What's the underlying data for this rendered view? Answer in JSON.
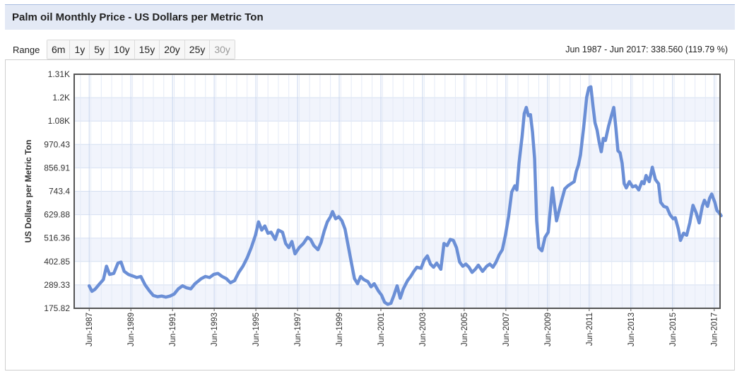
{
  "header": {
    "title": "Palm oil Monthly Price - US Dollars per Metric Ton"
  },
  "range": {
    "label": "Range",
    "buttons": [
      {
        "label": "6m",
        "enabled": true
      },
      {
        "label": "1y",
        "enabled": true
      },
      {
        "label": "5y",
        "enabled": true
      },
      {
        "label": "10y",
        "enabled": true
      },
      {
        "label": "15y",
        "enabled": true
      },
      {
        "label": "20y",
        "enabled": true
      },
      {
        "label": "25y",
        "enabled": true
      },
      {
        "label": "30y",
        "enabled": false
      }
    ],
    "summary": "Jun 1987 - Jun 2017: 338.560 (119.79 %)"
  },
  "colors": {
    "line": "#6b8fd6",
    "plot_bg_band": "#f1f4fc",
    "grid": "#d6e0f2",
    "plot_border": "#555555"
  },
  "chart_data": {
    "type": "line",
    "title": "",
    "xlabel": "",
    "ylabel": "US Dollars per Metric Ton",
    "ylim": [
      175.82,
      1310
    ],
    "xlim": [
      1986.7,
      2017.7
    ],
    "y_ticks": [
      "175.82",
      "289.33",
      "402.85",
      "516.36",
      "629.88",
      "743.4",
      "856.91",
      "970.43",
      "1.08K",
      "1.2K",
      "1.31K"
    ],
    "y_tick_values": [
      175.82,
      289.33,
      402.85,
      516.36,
      629.88,
      743.4,
      856.91,
      970.43,
      1083.95,
      1197.46,
      1310.98
    ],
    "x_ticks": [
      "Jun-1987",
      "Jun-1989",
      "Jun-1991",
      "Jun-1993",
      "Jun-1995",
      "Jun-1997",
      "Jun-1999",
      "Jun-2001",
      "Jun-2003",
      "Jun-2005",
      "Jun-2007",
      "Jun-2009",
      "Jun-2011",
      "Jun-2013",
      "Jun-2015",
      "Jun-2017"
    ],
    "x_tick_values": [
      1987.42,
      1989.42,
      1991.42,
      1993.42,
      1995.42,
      1997.42,
      1999.42,
      2001.42,
      2003.42,
      2005.42,
      2007.42,
      2009.42,
      2011.42,
      2013.42,
      2015.42,
      2017.42
    ],
    "legend": "none",
    "grid": true,
    "series": [
      {
        "points": [
          [
            1987.42,
            285
          ],
          [
            1987.55,
            258
          ],
          [
            1987.7,
            268
          ],
          [
            1987.9,
            292
          ],
          [
            1988.1,
            315
          ],
          [
            1988.25,
            380
          ],
          [
            1988.4,
            340
          ],
          [
            1988.6,
            345
          ],
          [
            1988.8,
            395
          ],
          [
            1988.95,
            400
          ],
          [
            1989.1,
            355
          ],
          [
            1989.3,
            340
          ],
          [
            1989.5,
            333
          ],
          [
            1989.7,
            325
          ],
          [
            1989.9,
            330
          ],
          [
            1990.1,
            290
          ],
          [
            1990.3,
            262
          ],
          [
            1990.5,
            238
          ],
          [
            1990.7,
            232
          ],
          [
            1990.9,
            235
          ],
          [
            1991.1,
            230
          ],
          [
            1991.3,
            235
          ],
          [
            1991.5,
            245
          ],
          [
            1991.7,
            270
          ],
          [
            1991.9,
            285
          ],
          [
            1992.1,
            275
          ],
          [
            1992.3,
            270
          ],
          [
            1992.5,
            295
          ],
          [
            1992.8,
            320
          ],
          [
            1993.0,
            330
          ],
          [
            1993.2,
            325
          ],
          [
            1993.4,
            340
          ],
          [
            1993.6,
            345
          ],
          [
            1993.8,
            330
          ],
          [
            1994.0,
            320
          ],
          [
            1994.2,
            300
          ],
          [
            1994.4,
            310
          ],
          [
            1994.6,
            350
          ],
          [
            1994.8,
            380
          ],
          [
            1995.0,
            420
          ],
          [
            1995.2,
            470
          ],
          [
            1995.4,
            530
          ],
          [
            1995.55,
            595
          ],
          [
            1995.7,
            555
          ],
          [
            1995.85,
            575
          ],
          [
            1996.0,
            540
          ],
          [
            1996.15,
            545
          ],
          [
            1996.35,
            510
          ],
          [
            1996.5,
            555
          ],
          [
            1996.7,
            545
          ],
          [
            1996.85,
            490
          ],
          [
            1997.0,
            470
          ],
          [
            1997.15,
            500
          ],
          [
            1997.3,
            440
          ],
          [
            1997.5,
            470
          ],
          [
            1997.7,
            490
          ],
          [
            1997.9,
            520
          ],
          [
            1998.05,
            510
          ],
          [
            1998.2,
            480
          ],
          [
            1998.4,
            460
          ],
          [
            1998.55,
            495
          ],
          [
            1998.7,
            550
          ],
          [
            1998.85,
            595
          ],
          [
            1999.0,
            620
          ],
          [
            1999.1,
            645
          ],
          [
            1999.25,
            610
          ],
          [
            1999.4,
            620
          ],
          [
            1999.55,
            600
          ],
          [
            1999.7,
            560
          ],
          [
            1999.85,
            480
          ],
          [
            2000.0,
            400
          ],
          [
            2000.15,
            320
          ],
          [
            2000.3,
            295
          ],
          [
            2000.45,
            330
          ],
          [
            2000.6,
            315
          ],
          [
            2000.8,
            305
          ],
          [
            2000.95,
            280
          ],
          [
            2001.1,
            295
          ],
          [
            2001.3,
            260
          ],
          [
            2001.45,
            240
          ],
          [
            2001.6,
            205
          ],
          [
            2001.75,
            195
          ],
          [
            2001.9,
            200
          ],
          [
            2002.05,
            240
          ],
          [
            2002.2,
            285
          ],
          [
            2002.35,
            225
          ],
          [
            2002.5,
            270
          ],
          [
            2002.7,
            310
          ],
          [
            2002.85,
            330
          ],
          [
            2003.0,
            355
          ],
          [
            2003.15,
            375
          ],
          [
            2003.35,
            370
          ],
          [
            2003.5,
            410
          ],
          [
            2003.65,
            430
          ],
          [
            2003.8,
            390
          ],
          [
            2003.95,
            375
          ],
          [
            2004.1,
            395
          ],
          [
            2004.3,
            365
          ],
          [
            2004.45,
            490
          ],
          [
            2004.6,
            480
          ],
          [
            2004.75,
            510
          ],
          [
            2004.9,
            505
          ],
          [
            2005.05,
            470
          ],
          [
            2005.2,
            400
          ],
          [
            2005.35,
            380
          ],
          [
            2005.5,
            390
          ],
          [
            2005.65,
            375
          ],
          [
            2005.8,
            350
          ],
          [
            2005.95,
            365
          ],
          [
            2006.1,
            385
          ],
          [
            2006.3,
            355
          ],
          [
            2006.5,
            380
          ],
          [
            2006.65,
            390
          ],
          [
            2006.8,
            375
          ],
          [
            2006.95,
            400
          ],
          [
            2007.1,
            435
          ],
          [
            2007.25,
            460
          ],
          [
            2007.4,
            530
          ],
          [
            2007.55,
            620
          ],
          [
            2007.7,
            740
          ],
          [
            2007.85,
            770
          ],
          [
            2007.95,
            750
          ],
          [
            2008.05,
            880
          ],
          [
            2008.2,
            1010
          ],
          [
            2008.3,
            1120
          ],
          [
            2008.4,
            1150
          ],
          [
            2008.5,
            1110
          ],
          [
            2008.6,
            1115
          ],
          [
            2008.7,
            1030
          ],
          [
            2008.8,
            900
          ],
          [
            2008.9,
            600
          ],
          [
            2009.0,
            470
          ],
          [
            2009.15,
            455
          ],
          [
            2009.3,
            520
          ],
          [
            2009.45,
            545
          ],
          [
            2009.55,
            650
          ],
          [
            2009.65,
            760
          ],
          [
            2009.75,
            680
          ],
          [
            2009.85,
            600
          ],
          [
            2009.95,
            640
          ],
          [
            2010.1,
            700
          ],
          [
            2010.25,
            755
          ],
          [
            2010.4,
            770
          ],
          [
            2010.55,
            780
          ],
          [
            2010.7,
            790
          ],
          [
            2010.8,
            840
          ],
          [
            2010.9,
            870
          ],
          [
            2011.0,
            920
          ],
          [
            2011.15,
            1050
          ],
          [
            2011.3,
            1200
          ],
          [
            2011.4,
            1245
          ],
          [
            2011.5,
            1250
          ],
          [
            2011.6,
            1160
          ],
          [
            2011.7,
            1075
          ],
          [
            2011.8,
            1040
          ],
          [
            2011.9,
            980
          ],
          [
            2012.0,
            935
          ],
          [
            2012.1,
            1000
          ],
          [
            2012.2,
            990
          ],
          [
            2012.35,
            1060
          ],
          [
            2012.5,
            1115
          ],
          [
            2012.6,
            1150
          ],
          [
            2012.7,
            1050
          ],
          [
            2012.8,
            940
          ],
          [
            2012.9,
            930
          ],
          [
            2013.0,
            880
          ],
          [
            2013.1,
            780
          ],
          [
            2013.2,
            760
          ],
          [
            2013.35,
            790
          ],
          [
            2013.5,
            765
          ],
          [
            2013.65,
            770
          ],
          [
            2013.8,
            750
          ],
          [
            2013.95,
            790
          ],
          [
            2014.05,
            780
          ],
          [
            2014.15,
            820
          ],
          [
            2014.3,
            790
          ],
          [
            2014.45,
            860
          ],
          [
            2014.6,
            800
          ],
          [
            2014.75,
            780
          ],
          [
            2014.85,
            690
          ],
          [
            2015.0,
            670
          ],
          [
            2015.15,
            665
          ],
          [
            2015.3,
            630
          ],
          [
            2015.45,
            610
          ],
          [
            2015.55,
            615
          ],
          [
            2015.7,
            560
          ],
          [
            2015.8,
            505
          ],
          [
            2015.95,
            540
          ],
          [
            2016.1,
            530
          ],
          [
            2016.25,
            590
          ],
          [
            2016.4,
            675
          ],
          [
            2016.55,
            640
          ],
          [
            2016.7,
            590
          ],
          [
            2016.85,
            670
          ],
          [
            2016.95,
            700
          ],
          [
            2017.1,
            670
          ],
          [
            2017.2,
            710
          ],
          [
            2017.3,
            730
          ],
          [
            2017.45,
            690
          ],
          [
            2017.55,
            650
          ],
          [
            2017.65,
            640
          ],
          [
            2017.75,
            625
          ]
        ]
      }
    ]
  }
}
